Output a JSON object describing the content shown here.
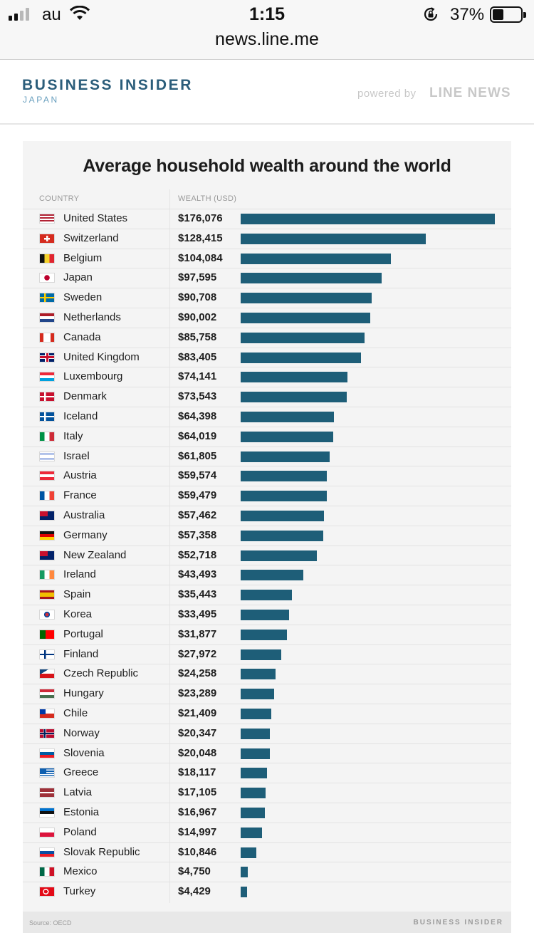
{
  "status_bar": {
    "carrier": "au",
    "time": "1:15",
    "battery_percent": "37%",
    "battery_level": 0.37,
    "signal_bars": 2
  },
  "browser": {
    "url": "news.line.me"
  },
  "site_header": {
    "logo": "BUSINESS INSIDER",
    "logo_sub": "JAPAN",
    "powered_by": "powered by",
    "partner": "LINE NEWS"
  },
  "colors": {
    "bar": "#1e5e78",
    "logo": "#2b5d7a"
  },
  "chart_data": {
    "type": "bar",
    "orientation": "horizontal",
    "title": "Average household wealth around the world",
    "col_country": "COUNTRY",
    "col_wealth": "WEALTH (USD)",
    "source": "Source: OECD",
    "brand": "BUSINESS INSIDER",
    "xlim": [
      0,
      176076
    ],
    "rows": [
      {
        "country": "United States",
        "label": "$176,076",
        "value": 176076,
        "flag": "us"
      },
      {
        "country": "Switzerland",
        "label": "$128,415",
        "value": 128415,
        "flag": "ch"
      },
      {
        "country": "Belgium",
        "label": "$104,084",
        "value": 104084,
        "flag": "be"
      },
      {
        "country": "Japan",
        "label": "$97,595",
        "value": 97595,
        "flag": "jp"
      },
      {
        "country": "Sweden",
        "label": "$90,708",
        "value": 90708,
        "flag": "se"
      },
      {
        "country": "Netherlands",
        "label": "$90,002",
        "value": 90002,
        "flag": "nl"
      },
      {
        "country": "Canada",
        "label": "$85,758",
        "value": 85758,
        "flag": "ca"
      },
      {
        "country": "United Kingdom",
        "label": "$83,405",
        "value": 83405,
        "flag": "gb"
      },
      {
        "country": "Luxembourg",
        "label": "$74,141",
        "value": 74141,
        "flag": "lu"
      },
      {
        "country": "Denmark",
        "label": "$73,543",
        "value": 73543,
        "flag": "dk"
      },
      {
        "country": "Iceland",
        "label": "$64,398",
        "value": 64398,
        "flag": "is"
      },
      {
        "country": "Italy",
        "label": "$64,019",
        "value": 64019,
        "flag": "it"
      },
      {
        "country": "Israel",
        "label": "$61,805",
        "value": 61805,
        "flag": "il"
      },
      {
        "country": "Austria",
        "label": "$59,574",
        "value": 59574,
        "flag": "at"
      },
      {
        "country": "France",
        "label": "$59,479",
        "value": 59479,
        "flag": "fr"
      },
      {
        "country": "Australia",
        "label": "$57,462",
        "value": 57462,
        "flag": "au"
      },
      {
        "country": "Germany",
        "label": "$57,358",
        "value": 57358,
        "flag": "de"
      },
      {
        "country": "New Zealand",
        "label": "$52,718",
        "value": 52718,
        "flag": "nz"
      },
      {
        "country": "Ireland",
        "label": "$43,493",
        "value": 43493,
        "flag": "ie"
      },
      {
        "country": "Spain",
        "label": "$35,443",
        "value": 35443,
        "flag": "es"
      },
      {
        "country": "Korea",
        "label": "$33,495",
        "value": 33495,
        "flag": "kr"
      },
      {
        "country": "Portugal",
        "label": "$31,877",
        "value": 31877,
        "flag": "pt"
      },
      {
        "country": "Finland",
        "label": "$27,972",
        "value": 27972,
        "flag": "fi"
      },
      {
        "country": "Czech Republic",
        "label": "$24,258",
        "value": 24258,
        "flag": "cz"
      },
      {
        "country": "Hungary",
        "label": "$23,289",
        "value": 23289,
        "flag": "hu"
      },
      {
        "country": "Chile",
        "label": "$21,409",
        "value": 21409,
        "flag": "cl"
      },
      {
        "country": "Norway",
        "label": "$20,347",
        "value": 20347,
        "flag": "no"
      },
      {
        "country": "Slovenia",
        "label": "$20,048",
        "value": 20048,
        "flag": "si"
      },
      {
        "country": "Greece",
        "label": "$18,117",
        "value": 18117,
        "flag": "gr"
      },
      {
        "country": "Latvia",
        "label": "$17,105",
        "value": 17105,
        "flag": "lv"
      },
      {
        "country": "Estonia",
        "label": "$16,967",
        "value": 16967,
        "flag": "ee"
      },
      {
        "country": "Poland",
        "label": "$14,997",
        "value": 14997,
        "flag": "pl"
      },
      {
        "country": "Slovak Republic",
        "label": "$10,846",
        "value": 10846,
        "flag": "sk"
      },
      {
        "country": "Mexico",
        "label": "$4,750",
        "value": 4750,
        "flag": "mx"
      },
      {
        "country": "Turkey",
        "label": "$4,429",
        "value": 4429,
        "flag": "tr"
      }
    ]
  }
}
